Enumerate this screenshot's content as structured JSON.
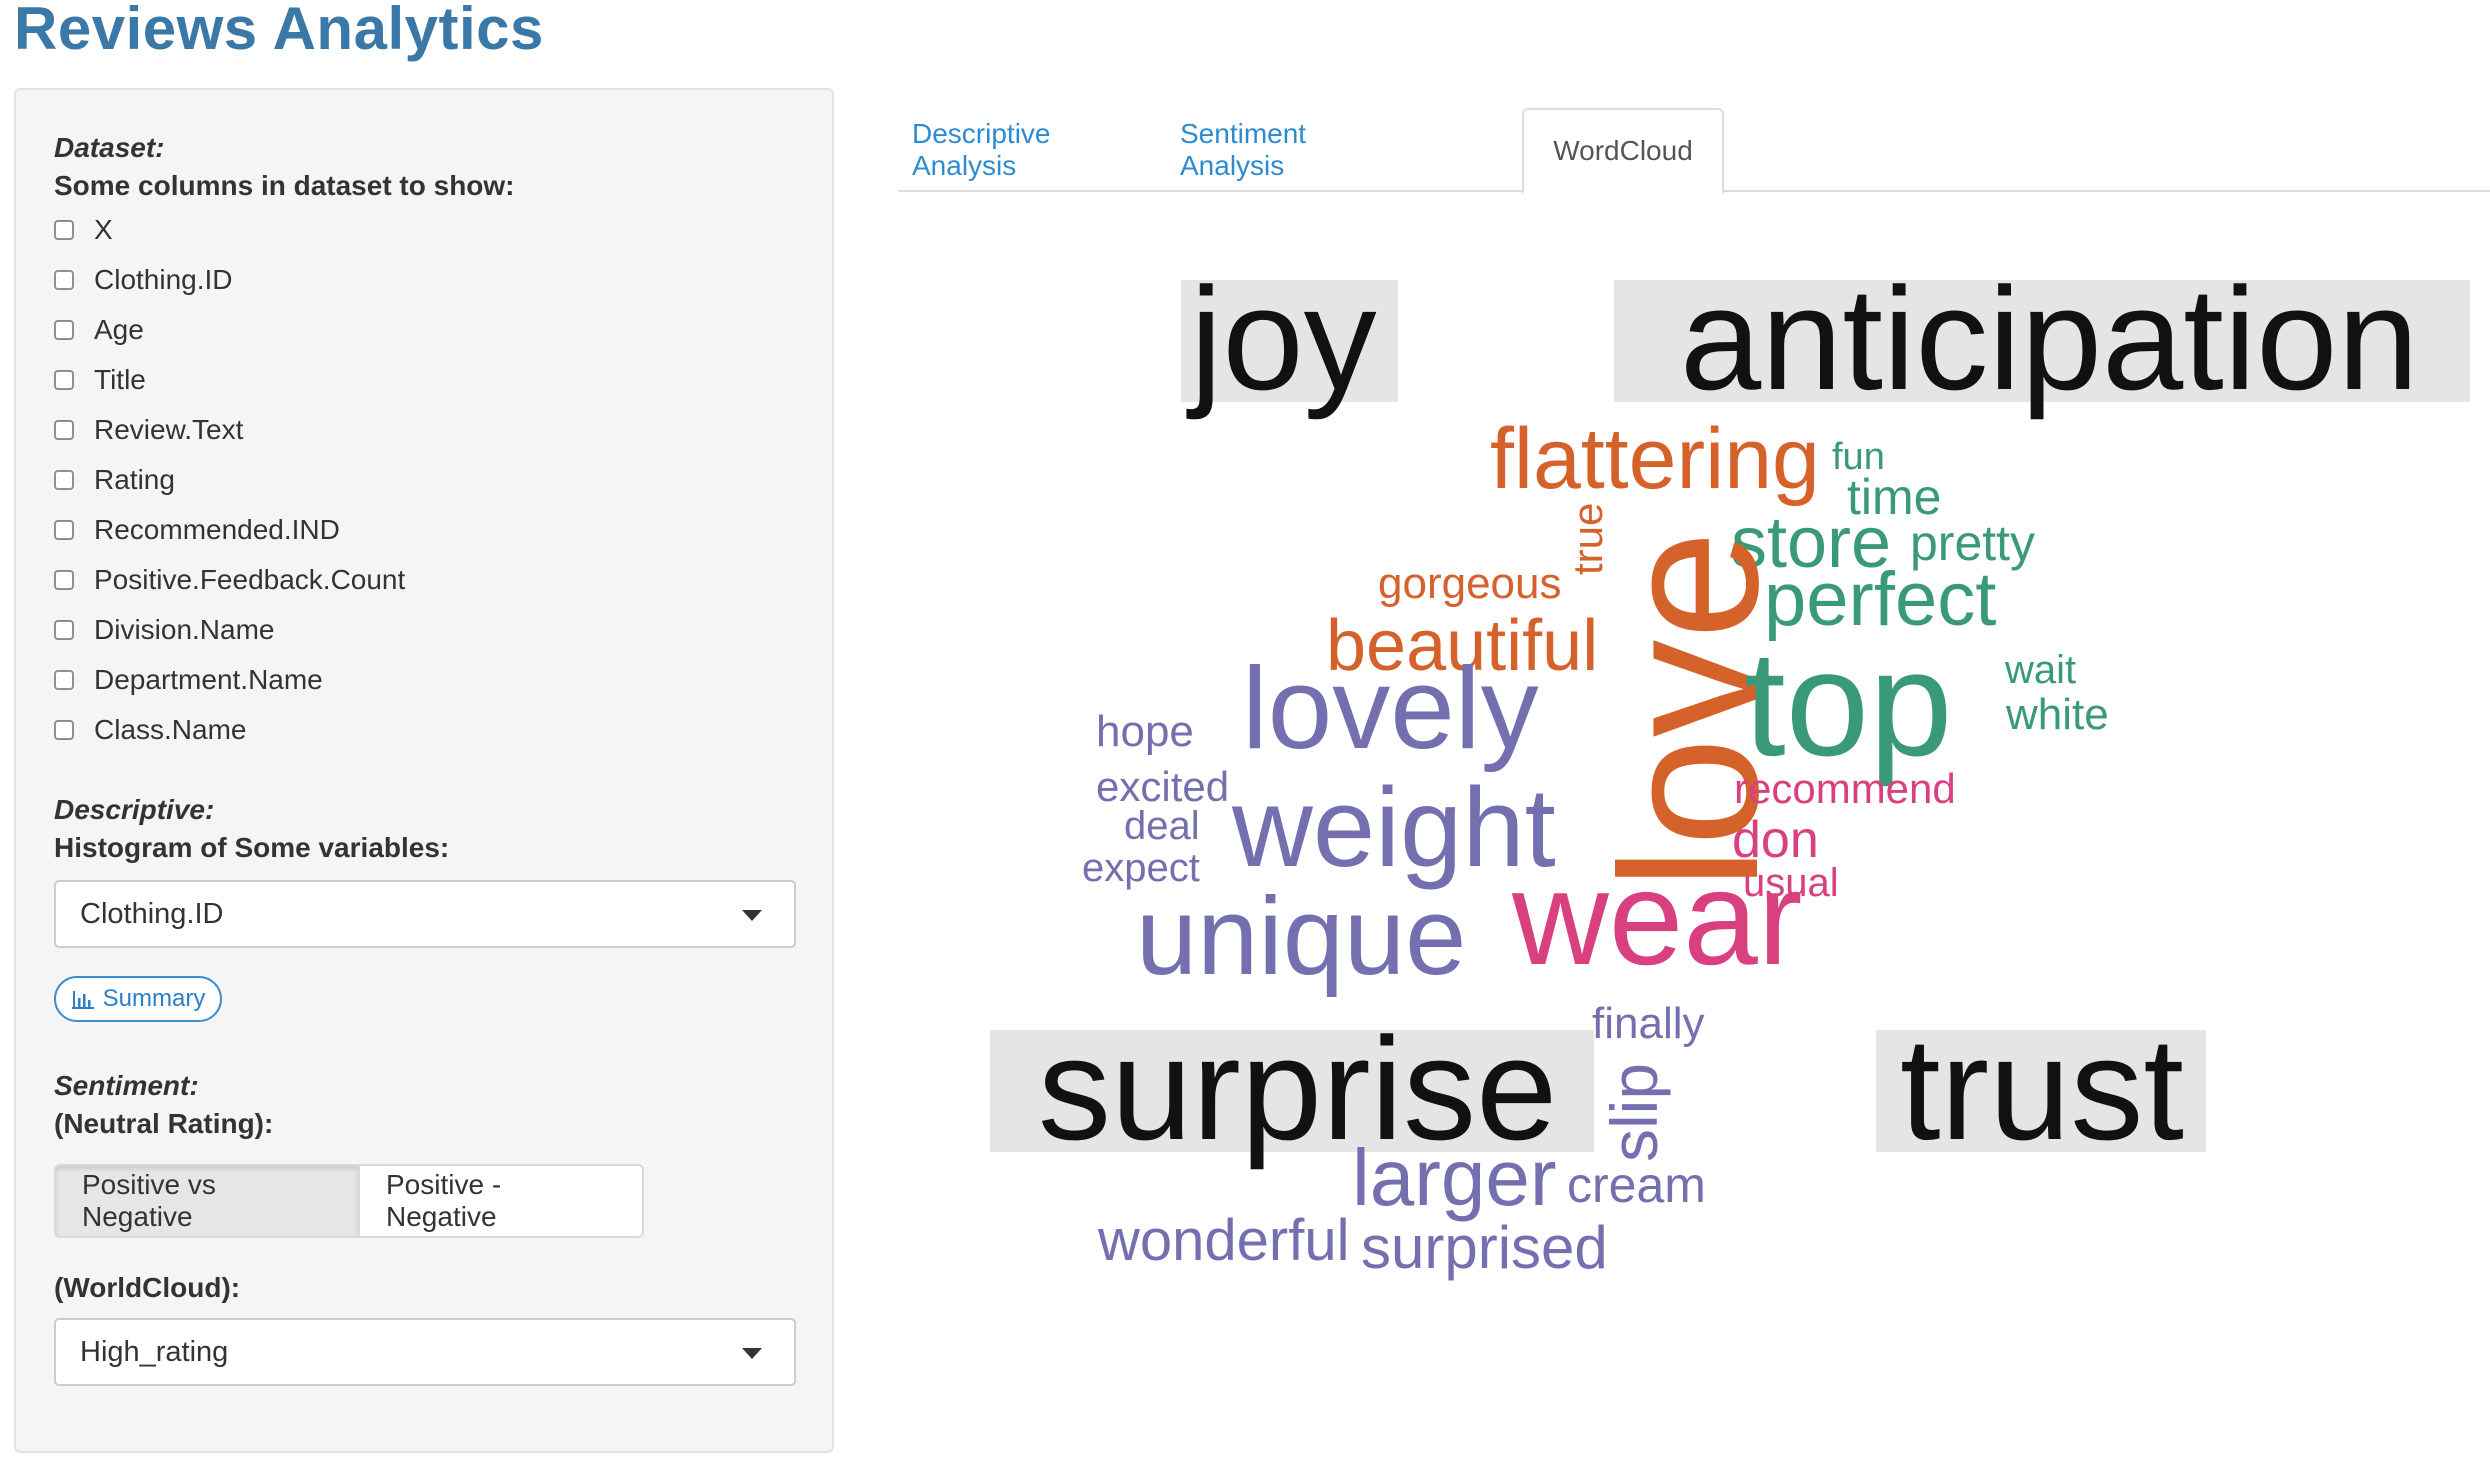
{
  "app": {
    "title": "Reviews Analytics"
  },
  "sidebar": {
    "dataset_title": "Dataset:",
    "columns_label": "Some columns in dataset to show:",
    "columns": [
      "X",
      "Clothing.ID",
      "Age",
      "Title",
      "Review.Text",
      "Rating",
      "Recommended.IND",
      "Positive.Feedback.Count",
      "Division.Name",
      "Department.Name",
      "Class.Name"
    ],
    "descriptive_title": "Descriptive:",
    "histogram_label": "Histogram of Some variables:",
    "histogram_selected": "Clothing.ID",
    "summary_button": "Summary",
    "sentiment_title": "Sentiment:",
    "neutral_label": "(Neutral Rating):",
    "toggle_options": [
      "Positive vs Negative",
      "Positive - Negative"
    ],
    "toggle_active": "Positive vs Negative",
    "wordcloud_label": "(WorldCloud):",
    "wordcloud_selected": "High_rating"
  },
  "tabs": [
    {
      "label": "Descriptive Analysis",
      "active": false
    },
    {
      "label": "Sentiment Analysis",
      "active": false
    },
    {
      "label": "WordCloud",
      "active": true
    }
  ],
  "colors": {
    "title": "#3a78a8",
    "link": "#2d8cd1",
    "orange": "#d4622a",
    "green": "#3a9a78",
    "purple": "#7470b0",
    "pink": "#d8407f",
    "black": "#111111",
    "highlight": "#e5e5e5"
  },
  "wordcloud": {
    "sentiment_labels": [
      "joy",
      "anticipation",
      "surprise",
      "trust"
    ],
    "words": [
      {
        "text": "flattering",
        "color": "orange"
      },
      {
        "text": "fun",
        "color": "green"
      },
      {
        "text": "time",
        "color": "green"
      },
      {
        "text": "store",
        "color": "green"
      },
      {
        "text": "pretty",
        "color": "green"
      },
      {
        "text": "true",
        "color": "orange"
      },
      {
        "text": "gorgeous",
        "color": "orange"
      },
      {
        "text": "perfect",
        "color": "green"
      },
      {
        "text": "beautiful",
        "color": "orange"
      },
      {
        "text": "love",
        "color": "orange"
      },
      {
        "text": "top",
        "color": "green"
      },
      {
        "text": "wait",
        "color": "green"
      },
      {
        "text": "white",
        "color": "green"
      },
      {
        "text": "hope",
        "color": "purple"
      },
      {
        "text": "lovely",
        "color": "purple"
      },
      {
        "text": "excited",
        "color": "purple"
      },
      {
        "text": "recommend",
        "color": "pink"
      },
      {
        "text": "deal",
        "color": "purple"
      },
      {
        "text": "weight",
        "color": "purple"
      },
      {
        "text": "don",
        "color": "pink"
      },
      {
        "text": "expect",
        "color": "purple"
      },
      {
        "text": "usual",
        "color": "pink"
      },
      {
        "text": "unique",
        "color": "purple"
      },
      {
        "text": "wear",
        "color": "pink"
      },
      {
        "text": "finally",
        "color": "purple"
      },
      {
        "text": "slip",
        "color": "purple"
      },
      {
        "text": "larger",
        "color": "purple"
      },
      {
        "text": "cream",
        "color": "purple"
      },
      {
        "text": "wonderful",
        "color": "purple"
      },
      {
        "text": "surprised",
        "color": "purple"
      }
    ]
  }
}
